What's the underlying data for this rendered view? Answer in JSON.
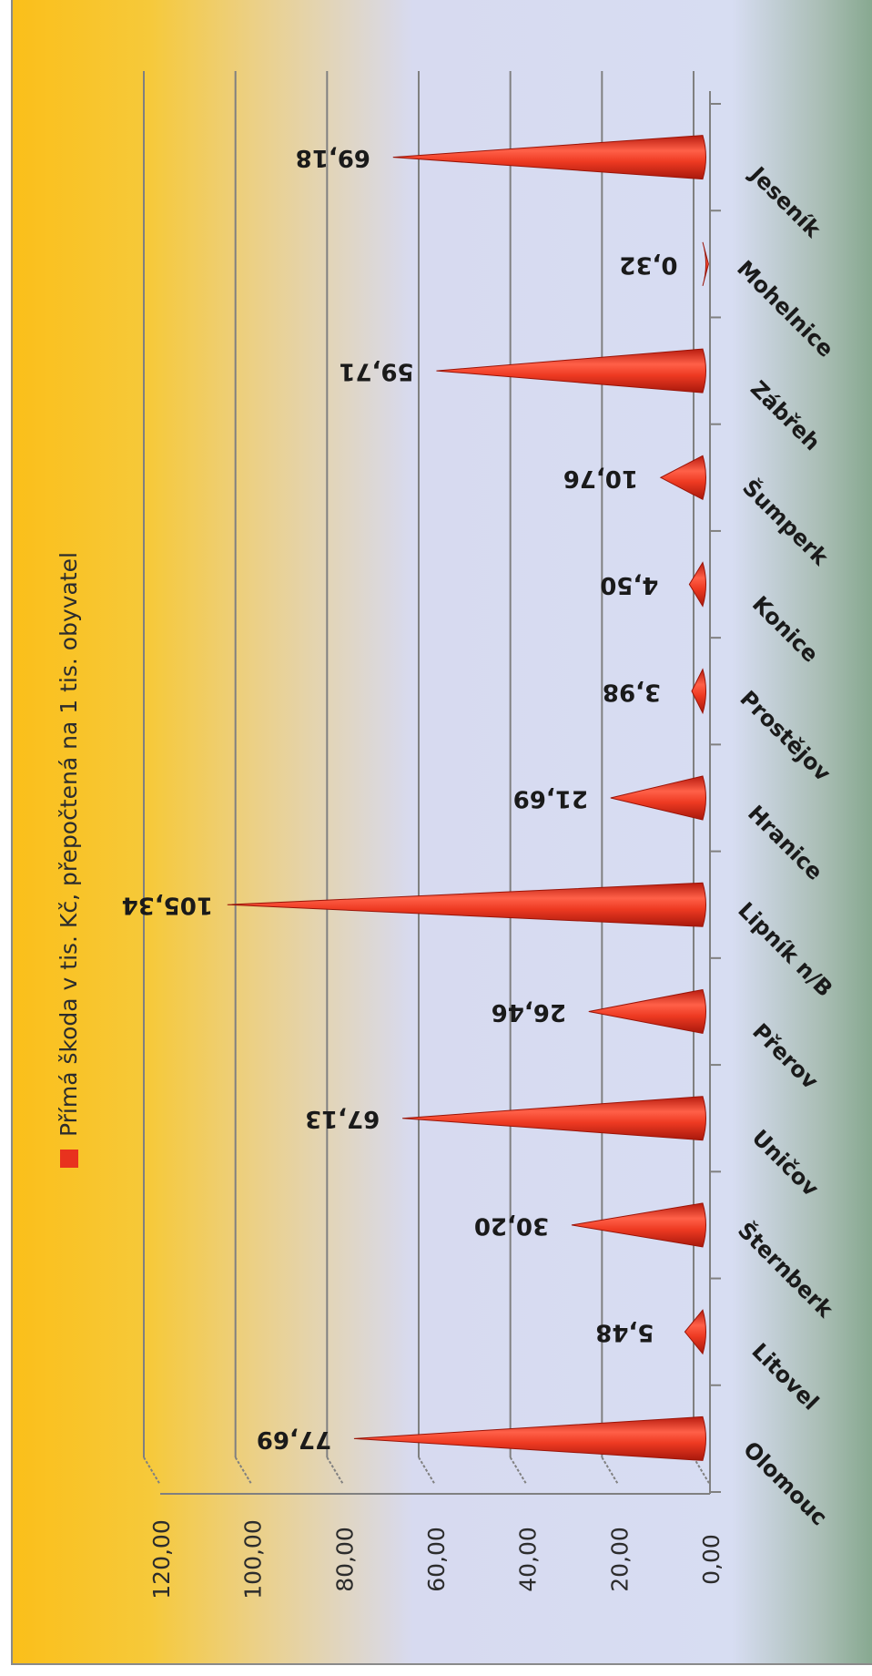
{
  "chart_data": {
    "type": "bar",
    "categories": [
      "Olomouc",
      "Litovel",
      "Šternberk",
      "Uničov",
      "Přerov",
      "Lipník n/B",
      "Hranice",
      "Prostějov",
      "Konice",
      "Šumperk",
      "Zábřeh",
      "Mohelnice",
      "Jeseník"
    ],
    "series": [
      {
        "name": "Přímá škoda v tis. Kč, přepočtená na 1 tis. obyvatel",
        "values": [
          77.69,
          5.48,
          30.2,
          67.13,
          26.46,
          105.34,
          21.69,
          3.98,
          4.5,
          10.76,
          59.71,
          0.32,
          69.18
        ],
        "labels": [
          "77,69",
          "5,48",
          "30,20",
          "67,13",
          "26,46",
          "105,34",
          "21,69",
          "3,98",
          "4,50",
          "10,76",
          "59,71",
          "0,32",
          "69,18"
        ]
      }
    ],
    "yticks": [
      "0,00",
      "20,00",
      "40,00",
      "60,00",
      "80,00",
      "100,00",
      "120,00"
    ],
    "ylim": [
      0,
      120
    ],
    "grid": true,
    "legend_position": "top",
    "orientation": "rotated 90° clockwise, cone-shaped bars",
    "colors": {
      "bar": "#e8321e",
      "bar_highlight": "#ff6a50",
      "grid": "#808080",
      "legend_marker": "#e8321e"
    }
  }
}
